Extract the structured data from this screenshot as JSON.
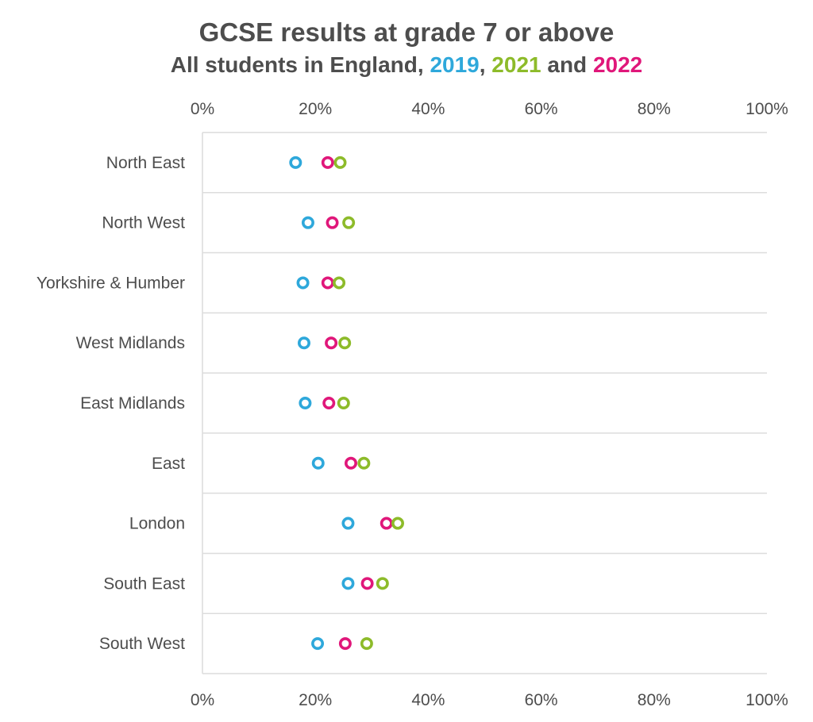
{
  "chart_data": {
    "type": "scatter",
    "title": "GCSE results at grade 7 or above",
    "subtitle": {
      "prefix": "All students in England, ",
      "sep1": ", ",
      "sep2": " and ",
      "year1": "2019",
      "year2": "2021",
      "year3": "2022"
    },
    "x_ticks": [
      "0%",
      "20%",
      "40%",
      "60%",
      "80%",
      "100%"
    ],
    "xlim": [
      0,
      100
    ],
    "x_unit": "%",
    "grid": true,
    "categories": [
      "North East",
      "North West",
      "Yorkshire & Humber",
      "West Midlands",
      "East Midlands",
      "East ",
      "London",
      "South East",
      "South West"
    ],
    "series": [
      {
        "name": "2019",
        "color": "#2ea8db",
        "values": [
          16.5,
          18.7,
          17.8,
          18.0,
          18.2,
          20.5,
          25.8,
          25.8,
          20.4
        ]
      },
      {
        "name": "2021",
        "color": "#8dbb2a",
        "values": [
          24.4,
          25.9,
          24.2,
          25.2,
          25.0,
          28.6,
          34.6,
          31.9,
          29.1
        ]
      },
      {
        "name": "2022",
        "color": "#e0177a",
        "values": [
          22.2,
          23.0,
          22.2,
          22.8,
          22.4,
          26.3,
          32.6,
          29.2,
          25.3
        ]
      }
    ]
  }
}
